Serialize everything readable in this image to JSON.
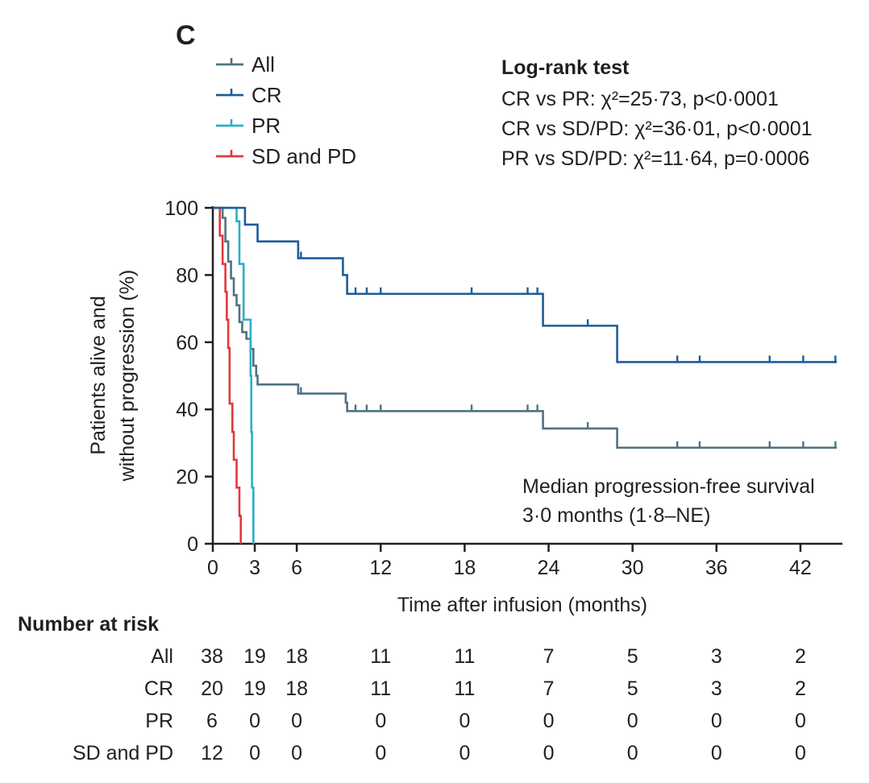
{
  "chart_data": {
    "type": "line",
    "subtype": "kaplan-meier",
    "panel_label": "C",
    "ylabel_line1": "Patients alive and",
    "ylabel_line2": "without progression (%)",
    "xlabel": "Time after infusion (months)",
    "xlim": [
      0,
      45
    ],
    "ylim": [
      0,
      100
    ],
    "xticks": [
      0,
      3,
      6,
      12,
      18,
      24,
      30,
      36,
      42
    ],
    "yticks": [
      0,
      20,
      40,
      60,
      80,
      100
    ],
    "legend": [
      {
        "name": "All",
        "color": "#4f7380"
      },
      {
        "name": "CR",
        "color": "#1f5c99"
      },
      {
        "name": "PR",
        "color": "#2aafc9"
      },
      {
        "name": "SD and PD",
        "color": "#e0393e"
      }
    ],
    "stats": {
      "title": "Log-rank test",
      "lines": [
        "CR vs PR:  χ²=25·73, p<0·0001",
        "CR vs SD/PD:  χ²=36·01, p<0·0001",
        "PR vs SD/PD: χ²=11·64, p=0·0006"
      ]
    },
    "annotation_line1": "Median progression-free survival",
    "annotation_line2": "3·0 months (1·8–NE)",
    "series": [
      {
        "name": "All",
        "color": "#4f7380",
        "steps": [
          [
            0,
            100
          ],
          [
            0.7,
            97
          ],
          [
            0.9,
            90
          ],
          [
            1.1,
            84
          ],
          [
            1.3,
            79
          ],
          [
            1.5,
            74
          ],
          [
            1.7,
            71
          ],
          [
            1.9,
            66
          ],
          [
            2.1,
            63
          ],
          [
            2.4,
            61
          ],
          [
            2.7,
            58
          ],
          [
            2.9,
            53
          ],
          [
            3.1,
            50
          ],
          [
            3.2,
            47.4
          ],
          [
            6.1,
            44.7
          ],
          [
            9.5,
            42
          ],
          [
            9.6,
            39.5
          ],
          [
            23.6,
            34.3
          ],
          [
            28.9,
            28.6
          ]
        ],
        "end": 44.6,
        "censors": [
          [
            6.3,
            44.7
          ],
          [
            10.2,
            39.5
          ],
          [
            11,
            39.5
          ],
          [
            12,
            39.5
          ],
          [
            18.5,
            39.5
          ],
          [
            22.5,
            39.5
          ],
          [
            23.2,
            39.5
          ],
          [
            26.8,
            34.3
          ],
          [
            33.2,
            28.6
          ],
          [
            34.8,
            28.6
          ],
          [
            39.8,
            28.6
          ],
          [
            42.2,
            28.6
          ],
          [
            44.5,
            28.6
          ]
        ]
      },
      {
        "name": "CR",
        "color": "#1f5c99",
        "steps": [
          [
            0,
            100
          ],
          [
            2.3,
            95
          ],
          [
            3.2,
            90
          ],
          [
            6.1,
            85
          ],
          [
            9.3,
            80
          ],
          [
            9.6,
            74.4
          ],
          [
            23.6,
            64.9
          ],
          [
            28.9,
            54.1
          ]
        ],
        "end": 44.6,
        "censors": [
          [
            6.3,
            85
          ],
          [
            10.2,
            74.4
          ],
          [
            11,
            74.4
          ],
          [
            12,
            74.4
          ],
          [
            18.5,
            74.4
          ],
          [
            22.5,
            74.4
          ],
          [
            23.2,
            74.4
          ],
          [
            26.8,
            64.9
          ],
          [
            33.2,
            54.1
          ],
          [
            34.8,
            54.1
          ],
          [
            39.8,
            54.1
          ],
          [
            42.2,
            54.1
          ],
          [
            44.5,
            54.1
          ]
        ]
      },
      {
        "name": "PR",
        "color": "#2aafc9",
        "steps": [
          [
            0,
            100
          ],
          [
            1.5,
            100
          ],
          [
            1.7,
            96
          ],
          [
            1.9,
            83.3
          ],
          [
            2.2,
            66.7
          ],
          [
            2.7,
            50
          ],
          [
            2.75,
            33.3
          ],
          [
            2.8,
            16.7
          ],
          [
            2.9,
            0
          ]
        ],
        "end": 2.9,
        "censors": []
      },
      {
        "name": "SD and PD",
        "color": "#e0393e",
        "steps": [
          [
            0,
            100
          ],
          [
            0.5,
            91.7
          ],
          [
            0.7,
            83.3
          ],
          [
            0.9,
            75
          ],
          [
            1.0,
            66.7
          ],
          [
            1.1,
            58.3
          ],
          [
            1.2,
            41.7
          ],
          [
            1.4,
            33.3
          ],
          [
            1.5,
            25
          ],
          [
            1.7,
            16.7
          ],
          [
            1.9,
            8.3
          ],
          [
            2.0,
            0
          ]
        ],
        "end": 2.0,
        "censors": []
      }
    ],
    "risk_table": {
      "title": "Number at risk",
      "times": [
        0,
        3,
        6,
        12,
        18,
        24,
        30,
        36,
        42
      ],
      "rows": [
        {
          "label": "All",
          "values": [
            38,
            19,
            18,
            11,
            11,
            7,
            5,
            3,
            2
          ]
        },
        {
          "label": "CR",
          "values": [
            20,
            19,
            18,
            11,
            11,
            7,
            5,
            3,
            2
          ]
        },
        {
          "label": "PR",
          "values": [
            6,
            0,
            0,
            0,
            0,
            0,
            0,
            0,
            0
          ]
        },
        {
          "label": "SD and PD",
          "values": [
            12,
            0,
            0,
            0,
            0,
            0,
            0,
            0,
            0
          ]
        }
      ]
    }
  }
}
